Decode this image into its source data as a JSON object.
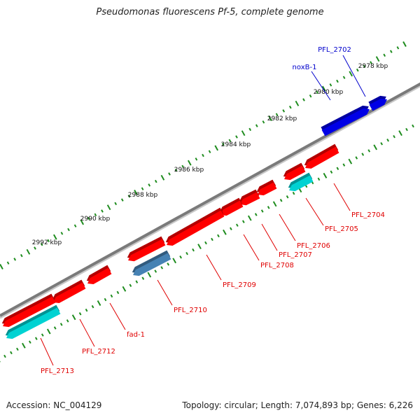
{
  "title": "Pseudomonas fluorescens Pf-5, complete genome",
  "footer": {
    "accession": "Accession: NC_004129",
    "summary": "Topology: circular; Length: 7,074,893 bp; Genes: 6,226"
  },
  "colors": {
    "backbone": "#808080",
    "ticks": "#1e8c1e",
    "forward_gene": "#0000e6",
    "reverse_gene": "#ff0000",
    "rna_gene": "#00d2d2",
    "other_gene": "#4682b4",
    "forward_label": "#0000cc",
    "reverse_label": "#e00000"
  },
  "ruler_labels": [
    "2978 kbp",
    "2980 kbp",
    "2982 kbp",
    "2984 kbp",
    "2986 kbp",
    "2988 kbp",
    "2990 kbp",
    "2992 kbp"
  ],
  "gene_labels": [
    {
      "text": "PFL_2702",
      "strand": "forward"
    },
    {
      "text": "noxB-1",
      "strand": "forward"
    },
    {
      "text": "PFL_2704",
      "strand": "reverse"
    },
    {
      "text": "PFL_2705",
      "strand": "reverse"
    },
    {
      "text": "PFL_2706",
      "strand": "reverse"
    },
    {
      "text": "PFL_2707",
      "strand": "reverse"
    },
    {
      "text": "PFL_2708",
      "strand": "reverse"
    },
    {
      "text": "PFL_2709",
      "strand": "reverse"
    },
    {
      "text": "PFL_2710",
      "strand": "reverse"
    },
    {
      "text": "fad-1",
      "strand": "reverse"
    },
    {
      "text": "PFL_2712",
      "strand": "reverse"
    },
    {
      "text": "PFL_2713",
      "strand": "reverse"
    }
  ]
}
